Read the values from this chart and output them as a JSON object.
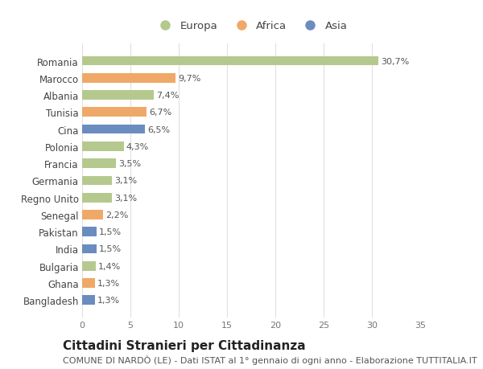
{
  "categories": [
    "Bangladesh",
    "Ghana",
    "Bulgaria",
    "India",
    "Pakistan",
    "Senegal",
    "Regno Unito",
    "Germania",
    "Francia",
    "Polonia",
    "Cina",
    "Tunisia",
    "Albania",
    "Marocco",
    "Romania"
  ],
  "values": [
    1.3,
    1.3,
    1.4,
    1.5,
    1.5,
    2.2,
    3.1,
    3.1,
    3.5,
    4.3,
    6.5,
    6.7,
    7.4,
    9.7,
    30.7
  ],
  "labels": [
    "1,3%",
    "1,3%",
    "1,4%",
    "1,5%",
    "1,5%",
    "2,2%",
    "3,1%",
    "3,1%",
    "3,5%",
    "4,3%",
    "6,5%",
    "6,7%",
    "7,4%",
    "9,7%",
    "30,7%"
  ],
  "continents": [
    "Asia",
    "Africa",
    "Europa",
    "Asia",
    "Asia",
    "Africa",
    "Europa",
    "Europa",
    "Europa",
    "Europa",
    "Asia",
    "Africa",
    "Europa",
    "Africa",
    "Europa"
  ],
  "color_map": {
    "Europa": "#b5c98e",
    "Africa": "#f0a868",
    "Asia": "#6b8cbf"
  },
  "title": "Cittadini Stranieri per Cittadinanza",
  "subtitle": "COMUNE DI NARDÒ (LE) - Dati ISTAT al 1° gennaio di ogni anno - Elaborazione TUTTITALIA.IT",
  "xlim": [
    0,
    35
  ],
  "xticks": [
    0,
    5,
    10,
    15,
    20,
    25,
    30,
    35
  ],
  "background_color": "#ffffff",
  "bar_height": 0.55,
  "grid_color": "#e0e0e0",
  "title_fontsize": 11,
  "subtitle_fontsize": 8,
  "label_fontsize": 8,
  "tick_fontsize": 8,
  "legend_fontsize": 9.5,
  "ytick_fontsize": 8.5
}
